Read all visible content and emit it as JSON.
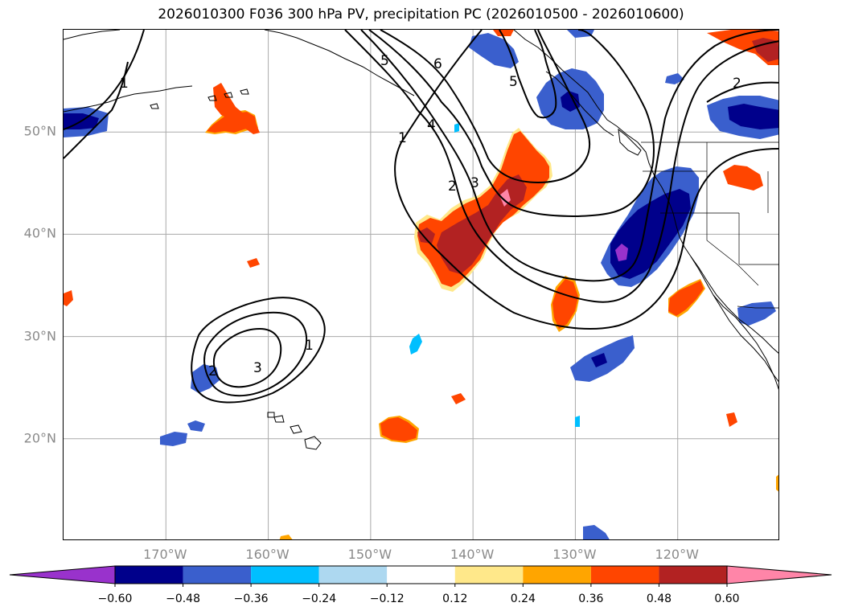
{
  "title": "2026010300 F036 300 hPa PV, precipitation PC (2026010500 - 2026010600)",
  "map": {
    "lat_labels": [
      {
        "lat": 50,
        "text": "50°N"
      },
      {
        "lat": 40,
        "text": "40°N"
      },
      {
        "lat": 30,
        "text": "30°N"
      },
      {
        "lat": 20,
        "text": "20°N"
      }
    ],
    "lon_labels": [
      {
        "lon": -170,
        "text": "170°W"
      },
      {
        "lon": -160,
        "text": "160°W"
      },
      {
        "lon": -150,
        "text": "150°W"
      },
      {
        "lon": -140,
        "text": "140°W"
      },
      {
        "lon": -130,
        "text": "130°W"
      },
      {
        "lon": -120,
        "text": "120°W"
      }
    ],
    "pv_contour_labels": [
      "1",
      "2",
      "3",
      "4",
      "5",
      "6"
    ],
    "extent": {
      "lon_min": -180,
      "lon_max": -110,
      "lat_min": 10,
      "lat_max": 60
    }
  },
  "colorbar": {
    "ticks": [
      "−0.60",
      "−0.48",
      "−0.36",
      "−0.24",
      "−0.12",
      "0.12",
      "0.24",
      "0.36",
      "0.48",
      "0.60"
    ],
    "colors": [
      "#9932cc",
      "#00008b",
      "#3a5fcd",
      "#00bfff",
      "#add8f0",
      "#ffffff",
      "#ffe88a",
      "#ffa500",
      "#ff4500",
      "#b22222",
      "#ff85a8"
    ]
  }
}
